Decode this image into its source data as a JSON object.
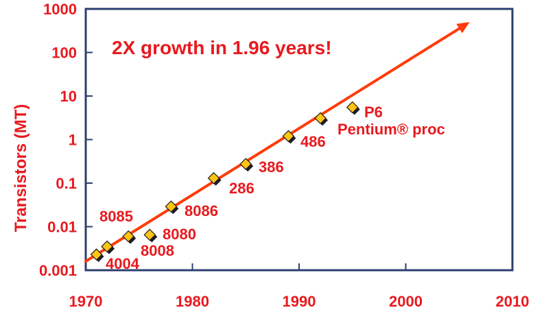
{
  "chart_data": {
    "type": "scatter",
    "title": "",
    "xlabel": "",
    "ylabel": "Transistors (MT)",
    "xlim": [
      1970,
      2010
    ],
    "ylim": [
      0.001,
      1000
    ],
    "yscale": "log",
    "x_ticks": [
      "1970",
      "1980",
      "1990",
      "2000",
      "2010"
    ],
    "y_ticks": [
      "0.001",
      "0.01",
      "0.1",
      "1",
      "10",
      "100",
      "1000"
    ],
    "annotation": "2X growth in 1.96 years!",
    "grid": false,
    "series": [
      {
        "points": [
          {
            "x": 1971,
            "y": 0.0023,
            "label": "4004"
          },
          {
            "x": 1972,
            "y": 0.0035,
            "label": ""
          },
          {
            "x": 1974,
            "y": 0.006,
            "label": "8085"
          },
          {
            "x": 1976,
            "y": 0.0065,
            "label": "8008"
          },
          {
            "x": 1978,
            "y": 0.029,
            "label": "8080"
          },
          {
            "x": 1982,
            "y": 0.13,
            "label": "8086"
          },
          {
            "x": 1985,
            "y": 0.275,
            "label": "286"
          },
          {
            "x": 1989,
            "y": 1.2,
            "label": "386"
          },
          {
            "x": 1992,
            "y": 3.1,
            "label": "486"
          },
          {
            "x": 1995,
            "y": 5.5,
            "label": "P6"
          }
        ]
      }
    ],
    "extra_labels": [
      "Pentium® proc"
    ],
    "trend_line": {
      "x0": 1970,
      "y0": 0.0016,
      "x1": 2006,
      "y1": 500
    },
    "colors": {
      "text": "#e8191e",
      "trend": "#ff3b0a",
      "axis": "#2a3f6e",
      "marker_fill": "#ffc414",
      "marker_stroke": "#1a1a1a"
    }
  }
}
